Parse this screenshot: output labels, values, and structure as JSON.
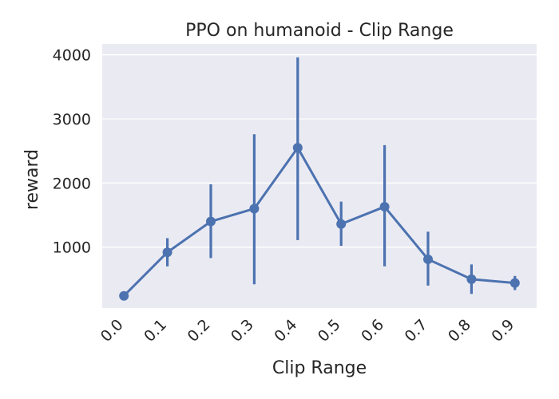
{
  "chart_data": {
    "type": "line",
    "title": "PPO on humanoid - Clip Range",
    "xlabel": "Clip Range",
    "ylabel": "reward",
    "categories": [
      "0.0",
      "0.1",
      "0.2",
      "0.3",
      "0.4",
      "0.5",
      "0.6",
      "0.7",
      "0.8",
      "0.9"
    ],
    "series": [
      {
        "values": [
          240,
          920,
          1400,
          1600,
          2550,
          1360,
          1630,
          810,
          500,
          440
        ],
        "error_low": [
          240,
          700,
          830,
          420,
          1110,
          1020,
          700,
          400,
          270,
          330
        ],
        "error_high": [
          240,
          1140,
          1980,
          2760,
          3960,
          1710,
          2590,
          1240,
          730,
          550
        ],
        "color": "#4c72b0"
      }
    ],
    "yticks": [
      1000,
      2000,
      3000,
      4000
    ],
    "ylim": [
      50,
      4170
    ],
    "grid": true,
    "background_color": "#eaeaf2",
    "gridline_color": "#ffffff"
  }
}
